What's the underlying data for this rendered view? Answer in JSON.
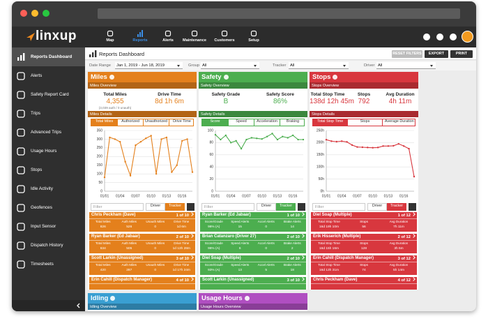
{
  "nav": {
    "logo": "linxup",
    "items": [
      "Map",
      "Reports",
      "Alerts",
      "Maintenance",
      "Customers",
      "Setup"
    ],
    "active": 1
  },
  "sidebar": {
    "items": [
      "Reports Dashboard",
      "Alerts",
      "Safety Report Card",
      "Trips",
      "Advanced Trips",
      "Usage Hours",
      "Stops",
      "Idle Activity",
      "Geofences",
      "Input Sensor",
      "Dispatch History",
      "Timesheets"
    ],
    "active": 0
  },
  "header": {
    "title": "Reports Dashboard",
    "buttons": [
      "RESET FILTERS",
      "EXPORT",
      "PRINT"
    ]
  },
  "filters": [
    {
      "label": "Date Range",
      "value": "Jan 1, 2019 - Jun 18, 2019"
    },
    {
      "label": "Group",
      "value": "All"
    },
    {
      "label": "Tracker",
      "value": "All"
    },
    {
      "label": "Driver",
      "value": "All"
    }
  ],
  "panels": [
    {
      "title": "Miles",
      "color": "#e4801c",
      "overview_label": "Miles Overview",
      "overview": [
        {
          "label": "Total Miles",
          "value": "4,355",
          "note": "(3,039 auth / 0 unauth)"
        },
        {
          "label": "Drive Time",
          "value": "8d 1h 6m"
        }
      ],
      "details_label": "Miles Details",
      "tabs": [
        "Total Miles",
        "Authorized",
        "Unauthorized",
        "Drive Time"
      ],
      "active_tab": 0,
      "filter_placeholder": "Filter",
      "toggle": [
        "Driver",
        "Tracker"
      ],
      "active_toggle": 1,
      "card_columns": [
        "Total Miles",
        "Auth Miles",
        "Unauth Miles",
        "Drive Time"
      ],
      "cards": [
        {
          "name": "Chris Peckham (Dave)",
          "rank": "1 of 10",
          "values": [
            826,
            526,
            0,
            "1d 6m"
          ]
        },
        {
          "name": "Ryan Barker (Ed Jabaar)",
          "rank": "2 of 10",
          "values": [
            634,
            505,
            0,
            "1d 13h 28m"
          ]
        },
        {
          "name": "Scott Larkin (Unassigned)",
          "rank": "3 of 10",
          "values": [
            420,
            287,
            0,
            "1d 17h 24m"
          ]
        },
        {
          "name": "Erin Cahill (Dispatch Manager)",
          "rank": "4 of 10"
        }
      ]
    },
    {
      "title": "Safety",
      "color": "#4cae4f",
      "overview_label": "Safety Overview",
      "overview": [
        {
          "label": "Safety Grade",
          "value": "B"
        },
        {
          "label": "Safety Score",
          "value": "86%"
        }
      ],
      "details_label": "Safety Details",
      "tabs": [
        "Score",
        "Speed",
        "Acceleration",
        "Braking"
      ],
      "active_tab": 0,
      "filter_placeholder": "Filter",
      "toggle": [
        "Driver",
        "Tracker"
      ],
      "active_toggle": 1,
      "card_columns": [
        "Score/Grade",
        "Speed Alerts",
        "Accel Alerts",
        "Brake Alerts"
      ],
      "cards": [
        {
          "name": "Ryan Barker (Ed Jabaar)",
          "rank": "1 of 10",
          "values": [
            "96% (A)",
            15,
            0,
            14
          ]
        },
        {
          "name": "Brian Catanzaro (Driver 27)",
          "rank": "2 of 10",
          "values": [
            "96% (A)",
            6,
            0,
            2
          ]
        },
        {
          "name": "Diel Soap (Multiple)",
          "rank": "2 of 10",
          "values": [
            "93% (A)",
            13,
            5,
            18
          ]
        },
        {
          "name": "Scott Larkin (Unassigned)",
          "rank": "3 of 10"
        }
      ]
    },
    {
      "title": "Stops",
      "color": "#d8373e",
      "overview_label": "Stops Overview",
      "overview": [
        {
          "label": "Total Stop Time",
          "value": "138d 12h 45m"
        },
        {
          "label": "Stops",
          "value": "792"
        },
        {
          "label": "Avg Duration",
          "value": "4h 11m"
        }
      ],
      "details_label": "Stops Details",
      "tabs": [
        "Total Stop Time",
        "Stops",
        "Average Duration"
      ],
      "active_tab": 0,
      "filter_placeholder": "Filter",
      "toggle": [
        "Driver",
        "Tracker"
      ],
      "active_toggle": 1,
      "card_columns": [
        "Total Stop Time",
        "Stops",
        "Avg Duration"
      ],
      "cards": [
        {
          "name": "Diel Soap (Multiple)",
          "rank": "1 of 12",
          "values": [
            "16d 19h 10m",
            56,
            "7h 11m"
          ]
        },
        {
          "name": "Erik Hisserich (Multiple)",
          "rank": "2 of 12",
          "values": [
            "16d 15h 16m",
            128,
            "3h 5m"
          ]
        },
        {
          "name": "Erin Cahill (Dispatch Manager)",
          "rank": "3 of 12",
          "values": [
            "16d 13h 31m",
            74,
            "5h 14m"
          ]
        },
        {
          "name": "Chris Peckham (Dave)",
          "rank": "4 of 12"
        }
      ]
    }
  ],
  "bottom_panels": [
    {
      "title": "Idling",
      "color": "#3a9fd2",
      "overview_label": "Idling Overview"
    },
    {
      "title": "Usage Hours",
      "color": "#b04fc1",
      "overview_label": "Usage Hours Overview"
    }
  ],
  "chart_data": [
    {
      "type": "line",
      "color": "#e4801c",
      "categories": [
        "01/01",
        null,
        null,
        "01/04",
        null,
        null,
        "01/07",
        null,
        null,
        "01/10",
        null,
        null,
        "01/13",
        null,
        null,
        "01/16",
        null,
        null
      ],
      "values": [
        80,
        310,
        300,
        285,
        170,
        90,
        265,
        285,
        305,
        320,
        100,
        300,
        310,
        110,
        150,
        290,
        300,
        110
      ],
      "ylim": [
        0,
        350
      ],
      "yticks": [
        0,
        50,
        100,
        150,
        200,
        250,
        300,
        350
      ],
      "grid": true
    },
    {
      "type": "line",
      "color": "#4cae4f",
      "categories": [
        "01/01",
        null,
        null,
        "01/04",
        null,
        null,
        "01/07",
        null,
        null,
        "01/10",
        null,
        null,
        "01/13",
        null,
        null,
        "01/16",
        null,
        null
      ],
      "values": [
        93,
        85,
        92,
        80,
        83,
        70,
        85,
        88,
        87,
        86,
        90,
        95,
        85,
        90,
        88,
        92,
        85,
        85
      ],
      "ylim": [
        0,
        100
      ],
      "yticks": [
        0,
        20,
        40,
        60,
        80,
        100
      ],
      "grid": true
    },
    {
      "type": "line",
      "color": "#d8373e",
      "categories": [
        "01/01",
        null,
        null,
        "01/04",
        null,
        null,
        "01/07",
        null,
        null,
        "01/10",
        null,
        null,
        "01/13",
        null,
        null,
        "01/16",
        null,
        null
      ],
      "values": [
        212,
        206,
        204,
        206,
        203,
        190,
        182,
        181,
        180,
        179,
        180,
        186,
        186,
        187,
        195,
        186,
        175,
        60
      ],
      "ylim": [
        0,
        250
      ],
      "yticks": [
        {
          "value": 0,
          "label": "0h"
        },
        {
          "value": 50,
          "label": "50h"
        },
        {
          "value": 100,
          "label": "100h"
        },
        {
          "value": 150,
          "label": "150h"
        },
        {
          "value": 200,
          "label": "200h"
        },
        {
          "value": 250,
          "label": "250h"
        }
      ],
      "grid": true
    }
  ]
}
